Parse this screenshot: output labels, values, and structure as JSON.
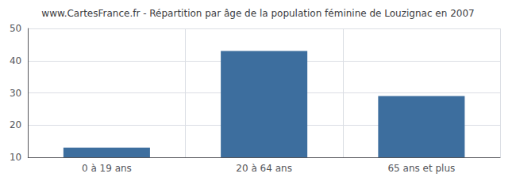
{
  "chart_data": {
    "type": "bar",
    "title": "www.CartesFrance.fr - Répartition par âge de la population féminine de Louzignac en 2007",
    "categories": [
      "0 à 19 ans",
      "20 à 64 ans",
      "65 ans et plus"
    ],
    "values": [
      13,
      43,
      29
    ],
    "color": "#3d6e9e",
    "ylim": [
      10,
      50
    ],
    "yticks": [
      10,
      20,
      30,
      40,
      50
    ],
    "grid": true
  }
}
